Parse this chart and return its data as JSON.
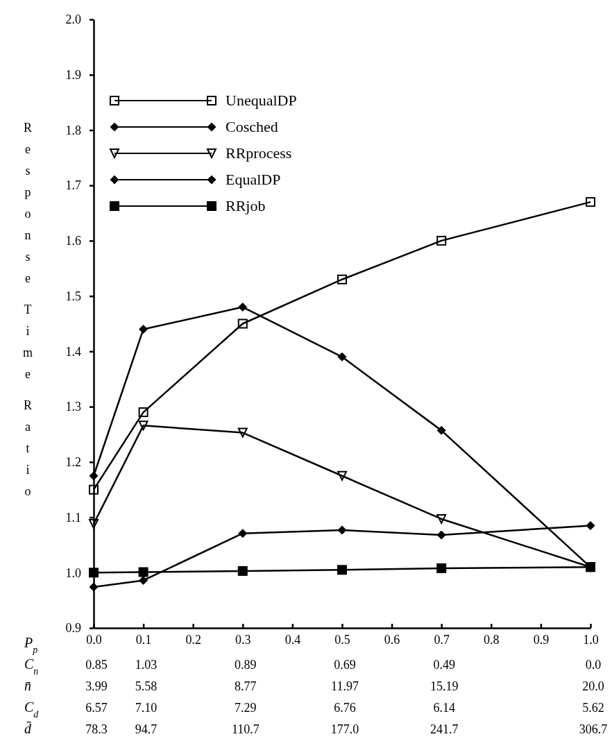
{
  "chart_data": {
    "type": "line",
    "ylabel": "Response Time Ratio",
    "xlabel": "P$_{p}$",
    "xlim": [
      0,
      1
    ],
    "xticks": [
      {
        "value": 0,
        "label": "0.0"
      },
      0.1,
      0.2,
      0.3,
      0.4,
      0.5,
      0.6,
      0.7,
      0.8,
      0.9,
      {
        "value": 1,
        "label": "1.0"
      }
    ],
    "ylim": [
      0.9,
      2.0
    ],
    "yticks": [
      0.9,
      {
        "value": 1,
        "label": "1.0"
      },
      1.1,
      1.2,
      1.3,
      1.4,
      1.5,
      1.6,
      1.7,
      1.8,
      1.9,
      {
        "value": 2,
        "label": "2.0"
      }
    ],
    "x": [
      0,
      0.1,
      0.3,
      0.5,
      0.7,
      1.0
    ],
    "series": [
      {
        "name": "UnequalDP",
        "color": "#000000",
        "marker": "square",
        "values": [
          1.15,
          1.29,
          1.45,
          1.53,
          1.6,
          1.67
        ]
      },
      {
        "name": "Cosched",
        "color": "#000000",
        "marker": "diamond",
        "values": [
          1.175,
          1.44,
          1.48,
          1.39,
          1.257,
          1.01
        ]
      },
      {
        "name": "RRprocess",
        "color": "#000000",
        "marker": "triangle",
        "values": [
          1.088,
          1.266,
          1.253,
          1.175,
          1.097,
          1.01
        ]
      },
      {
        "name": "EqualDP",
        "color": "#000000",
        "marker": "diamond",
        "values": [
          0.974,
          0.986,
          1.071,
          1.077,
          1.068,
          1.085
        ]
      },
      {
        "name": "RRjob",
        "color": "#000000",
        "marker": "square",
        "values": [
          1.0,
          1.001,
          1.003,
          1.005,
          1.008,
          1.01
        ]
      }
    ],
    "legend": "top left",
    "grid": false,
    "line_style": "solid",
    "annotations": [
      "C$_{n}$",
      "0.85",
      "1.03",
      "0.89",
      "0.69",
      "0.49",
      "0.0",
      "n̄",
      "3.99",
      "5.58",
      "8.77",
      "11.97",
      "15.19",
      "20.0",
      "C$_{d}$",
      "6.57",
      "7.10",
      "7.29",
      "6.76",
      "6.14",
      "5.62",
      "d̄",
      "78.3",
      "94.7",
      "110.7",
      "177.0",
      "241.7",
      "306.7"
    ]
  }
}
